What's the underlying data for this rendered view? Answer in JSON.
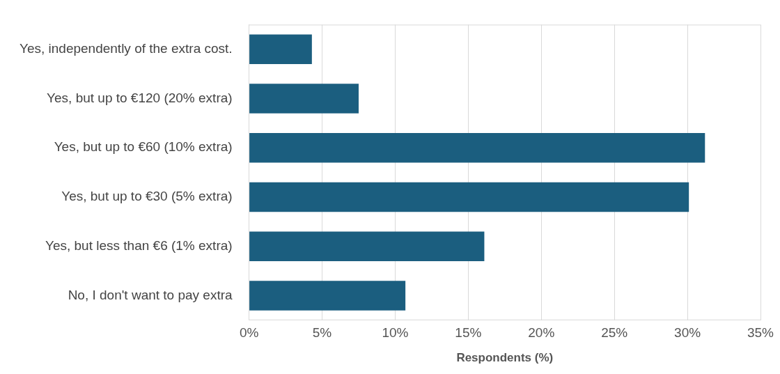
{
  "chart_data": {
    "type": "bar",
    "orientation": "horizontal",
    "xlabel": "Respondents (%)",
    "categories": [
      "Yes, independently of the extra cost.",
      "Yes, but up to €120 (20% extra)",
      "Yes, but up to €60 (10% extra)",
      "Yes, but up to €30 (5% extra)",
      "Yes, but less than €6 (1% extra)",
      "No, I don't want to pay extra"
    ],
    "values": [
      4.3,
      7.5,
      31.2,
      30.1,
      16.1,
      10.7
    ],
    "color": "#1b5e7f",
    "xlim": [
      0,
      35
    ],
    "xticks": [
      {
        "value": 0,
        "label": "0%"
      },
      {
        "value": 5,
        "label": "5%"
      },
      {
        "value": 10,
        "label": "10%"
      },
      {
        "value": 15,
        "label": "15%"
      },
      {
        "value": 20,
        "label": "20%"
      },
      {
        "value": 25,
        "label": "25%"
      },
      {
        "value": 30,
        "label": "30%"
      },
      {
        "value": 35,
        "label": "35%"
      }
    ],
    "grid": "x"
  }
}
